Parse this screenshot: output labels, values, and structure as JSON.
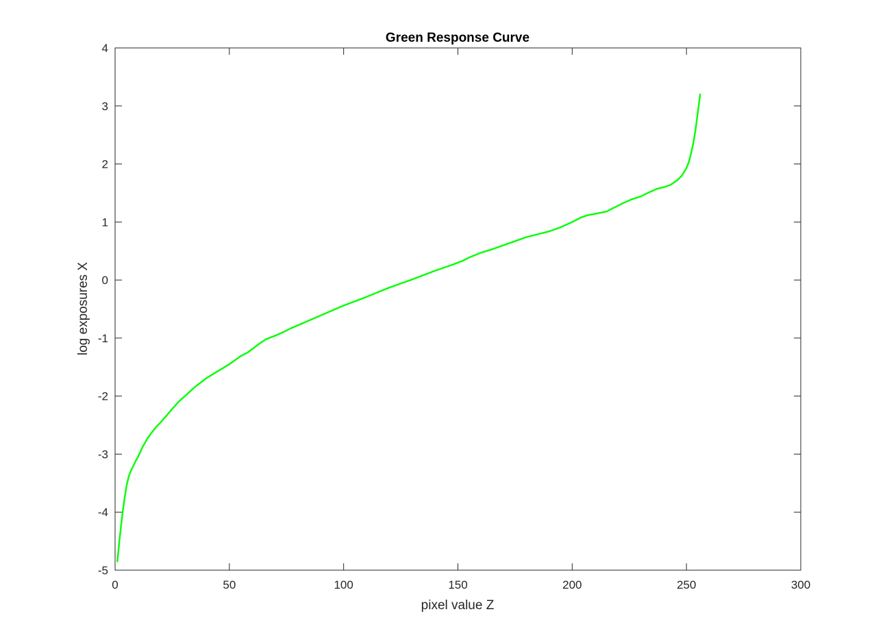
{
  "chart_data": {
    "type": "line",
    "title": "Green Response Curve",
    "xlabel": "pixel value Z",
    "ylabel": "log exposures X",
    "xlim": [
      0,
      300
    ],
    "ylim": [
      -5,
      4
    ],
    "xticks": [
      0,
      50,
      100,
      150,
      200,
      250,
      300
    ],
    "yticks": [
      -5,
      -4,
      -3,
      -2,
      -1,
      0,
      1,
      2,
      3,
      4
    ],
    "grid": false,
    "legend": "none",
    "series": [
      {
        "color": "#00ff00",
        "x": [
          1,
          2,
          3,
          4,
          5,
          6,
          7,
          8,
          9,
          10,
          12,
          14,
          16,
          18,
          20,
          22,
          25,
          28,
          30,
          35,
          40,
          45,
          50,
          55,
          58,
          60,
          63,
          66,
          70,
          74,
          77,
          80,
          90,
          100,
          110,
          120,
          130,
          140,
          148,
          152,
          155,
          160,
          165,
          170,
          175,
          180,
          185,
          190,
          195,
          200,
          204,
          207,
          210,
          215,
          218,
          222,
          226,
          230,
          233,
          237,
          240,
          243,
          246,
          248,
          250,
          251,
          252,
          253,
          254,
          255,
          256
        ],
        "y": [
          -4.85,
          -4.45,
          -4.1,
          -3.8,
          -3.55,
          -3.38,
          -3.28,
          -3.2,
          -3.12,
          -3.05,
          -2.88,
          -2.74,
          -2.63,
          -2.53,
          -2.45,
          -2.36,
          -2.22,
          -2.09,
          -2.02,
          -1.84,
          -1.69,
          -1.57,
          -1.45,
          -1.31,
          -1.25,
          -1.19,
          -1.1,
          -1.02,
          -0.96,
          -0.89,
          -0.83,
          -0.78,
          -0.61,
          -0.44,
          -0.29,
          -0.13,
          0.01,
          0.16,
          0.27,
          0.33,
          0.39,
          0.47,
          0.53,
          0.6,
          0.67,
          0.74,
          0.79,
          0.84,
          0.91,
          1.0,
          1.08,
          1.12,
          1.14,
          1.18,
          1.24,
          1.32,
          1.39,
          1.44,
          1.5,
          1.57,
          1.6,
          1.64,
          1.72,
          1.8,
          1.93,
          2.03,
          2.18,
          2.36,
          2.6,
          2.9,
          3.2
        ]
      }
    ]
  }
}
